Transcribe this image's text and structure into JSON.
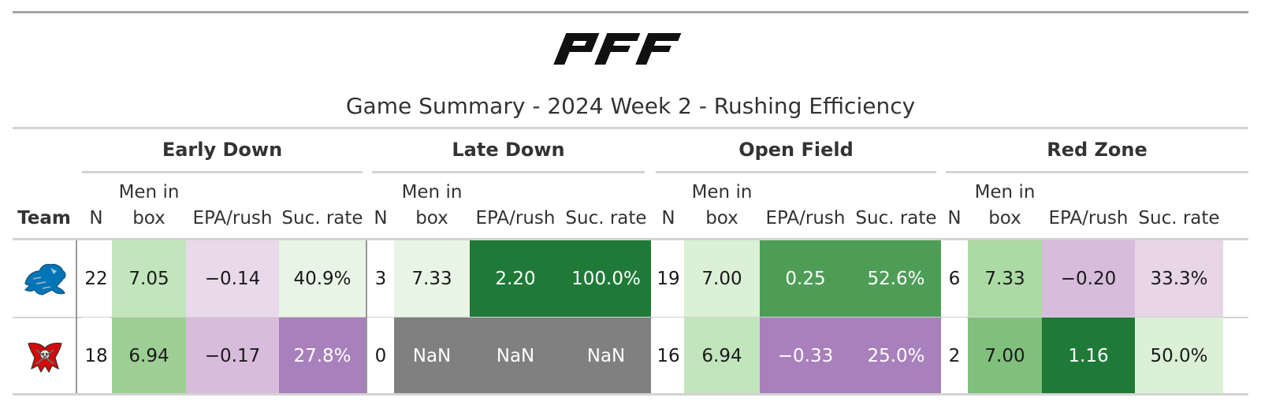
{
  "title": "Game Summary - 2024 Week 2 - Rushing Efficiency",
  "logo": {
    "text": "PFF",
    "icon": "pff-logo"
  },
  "spanners": [
    "Early Down",
    "Late Down",
    "Open Field",
    "Red Zone"
  ],
  "columns": {
    "team": "Team",
    "n": "N",
    "men_in_box_line1": "Men in",
    "men_in_box_line2": "box",
    "epa": "EPA/rush",
    "suc": "Suc. rate"
  },
  "rows": [
    {
      "team_icon": "detroit-lions-logo",
      "cells": [
        "22",
        "7.05",
        "−0.14",
        "40.9%",
        "3",
        "7.33",
        "2.20",
        "100.0%",
        "19",
        "7.00",
        "0.25",
        "52.6%",
        "6",
        "7.33",
        "−0.20",
        "33.3%"
      ],
      "colors": [
        "#ffffff",
        "#c3e5bd",
        "#ead9ea",
        "#e8f4e5",
        "#ffffff",
        "#e8f4e5",
        "#1f7a38",
        "#1f7a38",
        "#ffffff",
        "#dbf0d6",
        "#4e9d56",
        "#4e9d56",
        "#ffffff",
        "#acdaa4",
        "#d7bcdc",
        "#e8d5e8"
      ]
    },
    {
      "team_icon": "tampa-bay-buccaneers-logo",
      "cells": [
        "18",
        "6.94",
        "−0.17",
        "27.8%",
        "0",
        "NaN",
        "NaN",
        "NaN",
        "16",
        "6.94",
        "−0.33",
        "25.0%",
        "2",
        "7.00",
        "1.16",
        "50.0%"
      ],
      "colors": [
        "#ffffff",
        "#9dcf94",
        "#d7bcdc",
        "#a880bb",
        "#ffffff",
        "#808080",
        "#808080",
        "#808080",
        "#ffffff",
        "#c3e5bd",
        "#a880bb",
        "#a880bb",
        "#ffffff",
        "#80bf7c",
        "#1f7a38",
        "#dbf0d6"
      ]
    }
  ]
}
